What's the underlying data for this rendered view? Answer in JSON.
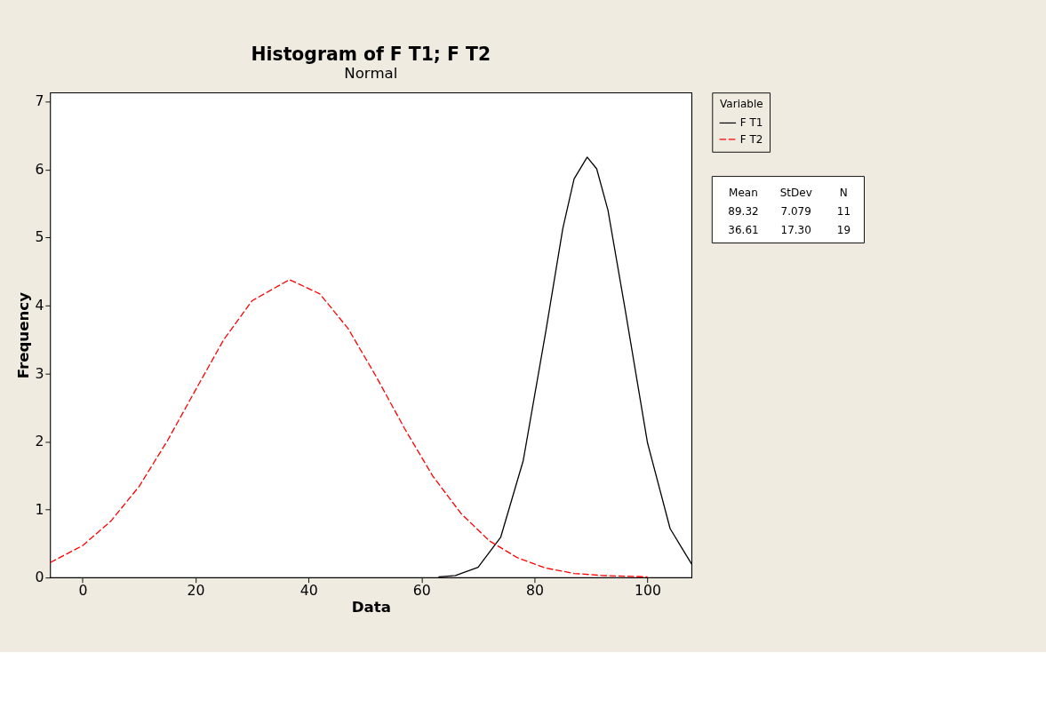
{
  "chart_data": {
    "type": "line",
    "title": "Histogram of F T1; F T2",
    "subtitle": "Normal",
    "xlabel": "Data",
    "ylabel": "Frequency",
    "legend_title": "Variable",
    "legend": "top right",
    "grid": false,
    "xlim": [
      -5.75,
      107.8
    ],
    "xticks": [
      0,
      20,
      40,
      60,
      80,
      100
    ],
    "ylim": [
      0,
      7.13
    ],
    "yticks": [
      0,
      1,
      2,
      3,
      4,
      5,
      6,
      7
    ],
    "series": [
      {
        "name": "F T1",
        "color": "#000000",
        "line_style": "solid",
        "x": [
          63,
          66,
          70,
          74,
          78,
          82,
          85,
          87,
          89.32,
          91,
          93,
          96,
          100,
          104,
          107.8
        ],
        "values": [
          0.01,
          0.03,
          0.15,
          0.59,
          1.72,
          3.62,
          5.13,
          5.86,
          6.18,
          6.01,
          5.4,
          3.96,
          1.98,
          0.72,
          0.2
        ]
      },
      {
        "name": "F T2",
        "color": "#ff0000",
        "line_style": "dashed",
        "x": [
          -5.75,
          0,
          5,
          10,
          15,
          20,
          25,
          30,
          36.61,
          42,
          47,
          52,
          57,
          62,
          67,
          72,
          77,
          82,
          87,
          92,
          100
        ],
        "values": [
          0.22,
          0.47,
          0.83,
          1.34,
          2.01,
          2.76,
          3.5,
          4.07,
          4.38,
          4.17,
          3.66,
          2.95,
          2.19,
          1.49,
          0.94,
          0.54,
          0.29,
          0.14,
          0.06,
          0.03,
          0.01
        ]
      }
    ],
    "annotations": [
      "Mean",
      "StDev",
      "N",
      "89.32",
      "7.079",
      "11",
      "36.61",
      "17.30",
      "19"
    ]
  }
}
